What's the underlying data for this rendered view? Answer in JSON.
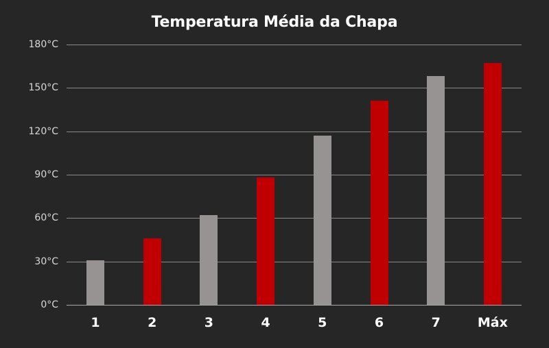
{
  "chart_data": {
    "type": "bar",
    "title": "Temperatura Média da Chapa",
    "xlabel": "",
    "ylabel": "",
    "categories": [
      "1",
      "2",
      "3",
      "4",
      "5",
      "6",
      "7",
      "Máx"
    ],
    "values": [
      31,
      46,
      62,
      88,
      117,
      141,
      158,
      167
    ],
    "units": "°C",
    "ylim": [
      0,
      180
    ],
    "yticks": [
      0,
      30,
      60,
      90,
      120,
      150,
      180
    ],
    "ytick_labels": [
      "0°C",
      "30°C",
      "60°C",
      "90°C",
      "120°C",
      "150°C",
      "180°C"
    ],
    "grid": true,
    "legend": null,
    "bar_colors": [
      "#969392",
      "#c00000",
      "#969392",
      "#c00000",
      "#969392",
      "#c00000",
      "#969392",
      "#c00000"
    ]
  },
  "colors": {
    "background": "#262626",
    "gray_bar": "#969392",
    "red_bar": "#c00000",
    "gridline": "#8a8a8a",
    "text": "#ffffff"
  }
}
